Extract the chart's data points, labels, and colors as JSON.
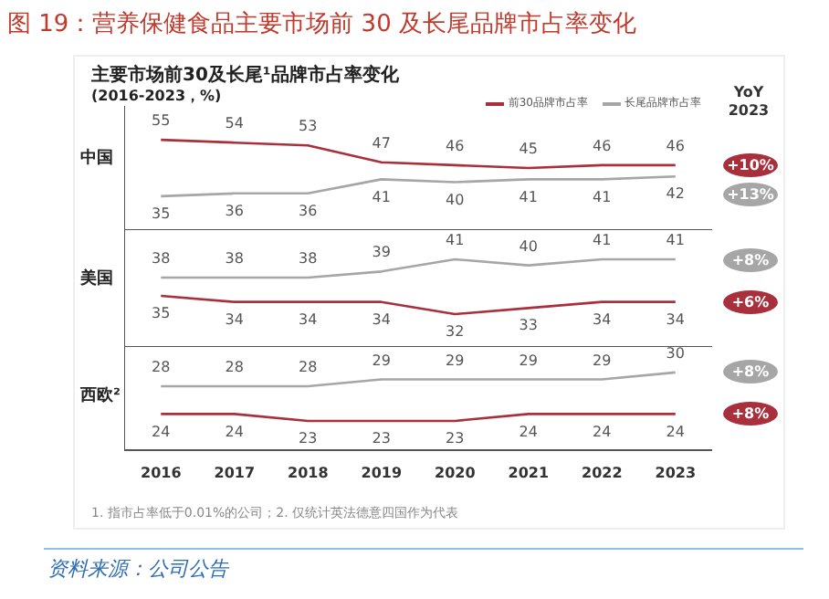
{
  "chart_data": [
    {
      "type": "line",
      "title": "主要市场前30及长尾¹品牌市占率变化",
      "subtitle": "(2016-2023，%)",
      "ylabel": "中国",
      "categories": [
        "2016",
        "2017",
        "2018",
        "2019",
        "2020",
        "2021",
        "2022",
        "2023"
      ],
      "series": [
        {
          "name": "前30品牌市占率",
          "color": "#a8303c",
          "values": [
            55,
            54,
            53,
            47,
            46,
            45,
            46,
            46
          ]
        },
        {
          "name": "长尾品牌市占率",
          "color": "#a6a6a6",
          "values": [
            35,
            36,
            36,
            41,
            40,
            41,
            41,
            42
          ]
        }
      ],
      "data_labels": true,
      "legend": "top right",
      "grid": false,
      "tick_labels": false,
      "marker": "none",
      "annotations": [
        "+10%",
        "+13%",
        "图 19：营养保健食品主要市场前 30 及长尾品牌市占率变化",
        "YoY 2023"
      ]
    },
    {
      "type": "line",
      "ylabel": "美国",
      "categories": [
        "2016",
        "2017",
        "2018",
        "2019",
        "2020",
        "2021",
        "2022",
        "2023"
      ],
      "series": [
        {
          "color": "#a8303c",
          "values": [
            35,
            34,
            34,
            34,
            32,
            33,
            34,
            34
          ]
        },
        {
          "color": "#a6a6a6",
          "values": [
            38,
            38,
            38,
            39,
            41,
            40,
            41,
            41
          ]
        }
      ],
      "data_labels": true,
      "legend": false,
      "grid": false,
      "tick_labels": false,
      "marker": "none",
      "annotations": [
        "+6%",
        "+8%"
      ]
    },
    {
      "type": "line",
      "ylabel": "西欧²",
      "categories": [
        "2016",
        "2017",
        "2018",
        "2019",
        "2020",
        "2021",
        "2022",
        "2023"
      ],
      "series": [
        {
          "color": "#a8303c",
          "values": [
            24,
            24,
            23,
            23,
            23,
            24,
            24,
            24
          ]
        },
        {
          "color": "#a6a6a6",
          "values": [
            28,
            28,
            28,
            29,
            29,
            29,
            29,
            30
          ]
        }
      ],
      "data_labels": true,
      "legend": false,
      "grid": false,
      "tick_labels": "x",
      "marker": "none",
      "annotations": [
        "+8%",
        "+8%",
        "1. 指市占率低于0.01%的公司；2. 仅统计英法德意四国作为代表",
        "资料来源：公司公告"
      ]
    }
  ]
}
